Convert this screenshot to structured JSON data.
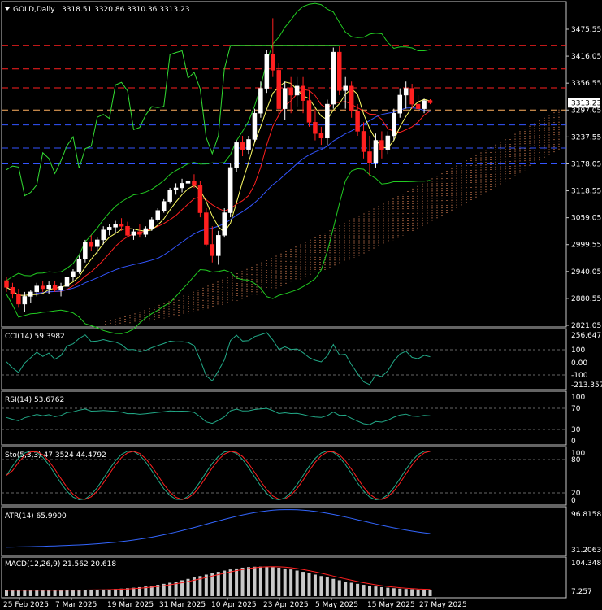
{
  "colors": {
    "bg": "#000000",
    "border": "#c8c8c8",
    "text": "#ffffff",
    "bull_body": "#ffffff",
    "bear_body": "#ff2020",
    "candle_blue": "#3060ff",
    "ichimoku": "#ff9966",
    "level_red": "#ff2020",
    "level_blue": "#3355ff",
    "level_orange": "#ffb060",
    "bb": "#22cc22",
    "tenkan": "#ff2020",
    "kijun": "#3355ff",
    "chikou": "#33dd33",
    "ma_yellow": "#ffff66",
    "osc": "#22aa88",
    "sto_signal": "#ff2020",
    "atr": "#3366ff",
    "macd_hist": "#c8c8c8",
    "macd_signal": "#ff2020",
    "price_label_bg": "#ffffff"
  },
  "header": {
    "title": "GOLD,Daily",
    "ohlc": "3318.51 3320.86 3310.36 3313.23"
  },
  "price_axis": {
    "labels": [
      "3475.55",
      "3416.05",
      "3356.55",
      "3297.05",
      "3237.55",
      "3178.05",
      "3118.55",
      "3059.05",
      "2999.55",
      "2940.05",
      "2880.55",
      "2821.05"
    ],
    "current": "3313.23"
  },
  "date_axis": [
    "25 Feb 2025",
    "7 Mar 2025",
    "19 Mar 2025",
    "31 Mar 2025",
    "10 Apr 2025",
    "23 Apr 2025",
    "5 May 2025",
    "15 May 2025",
    "27 May 2025"
  ],
  "panels": {
    "cci": {
      "label": "CCI(14) 59.3982",
      "axis": [
        "256.6471",
        "100",
        "0.00",
        "-100",
        "-213.3574"
      ]
    },
    "rsi": {
      "label": "RSI(14) 53.6762",
      "axis": [
        "100",
        "70",
        "30",
        "0"
      ]
    },
    "sto": {
      "label": "Sto(5,3,3) 47.3524 44.4792",
      "axis": [
        "100",
        "80",
        "20",
        "0"
      ]
    },
    "atr": {
      "label": "ATR(14) 65.9900",
      "axis": [
        "96.8158",
        "31.2063"
      ]
    },
    "macd": {
      "label": "MACD(12,26,9) 21.562 20.618",
      "axis": [
        "104.348",
        "7.257"
      ]
    }
  },
  "chart_data": {
    "type": "candlestick",
    "symbol": "GOLD",
    "timeframe": "Daily",
    "ylim": [
      2821.05,
      3475.55
    ],
    "levels": [
      {
        "price": 3440,
        "style": "red-dash"
      },
      {
        "price": 3388,
        "style": "red-dash"
      },
      {
        "price": 3346,
        "style": "red-dash"
      },
      {
        "price": 3297,
        "style": "orange-dash"
      },
      {
        "price": 3264,
        "style": "blue-dash"
      },
      {
        "price": 3213,
        "style": "blue-dash"
      },
      {
        "price": 3178,
        "style": "blue-dash"
      }
    ],
    "candles": [
      [
        2920,
        2928,
        2895,
        2905
      ],
      [
        2905,
        2915,
        2880,
        2890
      ],
      [
        2890,
        2902,
        2860,
        2868
      ],
      [
        2868,
        2895,
        2850,
        2885
      ],
      [
        2885,
        2900,
        2870,
        2895
      ],
      [
        2895,
        2915,
        2885,
        2908
      ],
      [
        2908,
        2920,
        2895,
        2902
      ],
      [
        2902,
        2918,
        2890,
        2910
      ],
      [
        2910,
        2920,
        2895,
        2900
      ],
      [
        2900,
        2915,
        2885,
        2907
      ],
      [
        2907,
        2932,
        2900,
        2928
      ],
      [
        2928,
        2945,
        2920,
        2940
      ],
      [
        2940,
        2975,
        2935,
        2968
      ],
      [
        2968,
        3010,
        2960,
        3005
      ],
      [
        3005,
        3020,
        2985,
        2995
      ],
      [
        2995,
        3015,
        2980,
        3010
      ],
      [
        3010,
        3040,
        3000,
        3032
      ],
      [
        3032,
        3045,
        3020,
        3038
      ],
      [
        3038,
        3052,
        3025,
        3045
      ],
      [
        3045,
        3058,
        3030,
        3040
      ],
      [
        3040,
        3050,
        3015,
        3020
      ],
      [
        3020,
        3035,
        3010,
        3028
      ],
      [
        3028,
        3045,
        3015,
        3022
      ],
      [
        3022,
        3040,
        3015,
        3035
      ],
      [
        3035,
        3060,
        3030,
        3055
      ],
      [
        3055,
        3080,
        3050,
        3075
      ],
      [
        3075,
        3100,
        3070,
        3095
      ],
      [
        3095,
        3125,
        3090,
        3120
      ],
      [
        3120,
        3135,
        3110,
        3125
      ],
      [
        3125,
        3145,
        3115,
        3135
      ],
      [
        3135,
        3150,
        3120,
        3140
      ],
      [
        3140,
        3155,
        3125,
        3130
      ],
      [
        3130,
        3140,
        3060,
        3070
      ],
      [
        3070,
        3080,
        2995,
        3000
      ],
      [
        3000,
        3040,
        2960,
        2975
      ],
      [
        2975,
        3030,
        2955,
        3020
      ],
      [
        3020,
        3080,
        3015,
        3070
      ],
      [
        3070,
        3180,
        3060,
        3170
      ],
      [
        3170,
        3230,
        3160,
        3225
      ],
      [
        3225,
        3240,
        3195,
        3210
      ],
      [
        3210,
        3240,
        3200,
        3232
      ],
      [
        3232,
        3300,
        3225,
        3290
      ],
      [
        3290,
        3360,
        3280,
        3345
      ],
      [
        3345,
        3430,
        3335,
        3420
      ],
      [
        3420,
        3500,
        3370,
        3385
      ],
      [
        3385,
        3400,
        3280,
        3300
      ],
      [
        3300,
        3360,
        3275,
        3345
      ],
      [
        3345,
        3370,
        3290,
        3330
      ],
      [
        3330,
        3370,
        3305,
        3350
      ],
      [
        3350,
        3370,
        3290,
        3318
      ],
      [
        3318,
        3340,
        3260,
        3270
      ],
      [
        3270,
        3300,
        3230,
        3245
      ],
      [
        3245,
        3260,
        3220,
        3235
      ],
      [
        3235,
        3320,
        3220,
        3310
      ],
      [
        3310,
        3435,
        3300,
        3425
      ],
      [
        3425,
        3438,
        3330,
        3340
      ],
      [
        3340,
        3370,
        3300,
        3350
      ],
      [
        3350,
        3360,
        3280,
        3295
      ],
      [
        3295,
        3310,
        3240,
        3250
      ],
      [
        3250,
        3270,
        3190,
        3205
      ],
      [
        3205,
        3240,
        3150,
        3180
      ],
      [
        3180,
        3245,
        3170,
        3230
      ],
      [
        3230,
        3250,
        3190,
        3210
      ],
      [
        3210,
        3250,
        3200,
        3240
      ],
      [
        3240,
        3300,
        3230,
        3290
      ],
      [
        3290,
        3345,
        3280,
        3330
      ],
      [
        3330,
        3360,
        3300,
        3345
      ],
      [
        3345,
        3355,
        3300,
        3310
      ],
      [
        3310,
        3330,
        3290,
        3300
      ],
      [
        3300,
        3322,
        3290,
        3318
      ],
      [
        3318,
        3321,
        3310,
        3313
      ]
    ]
  }
}
